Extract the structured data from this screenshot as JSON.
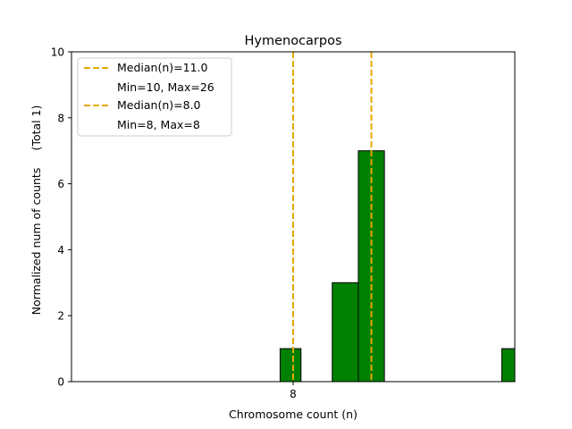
{
  "chart_data": {
    "type": "bar",
    "title": "Hymenocarpos",
    "xlabel": "Chromosome count (n)",
    "ylabel": "Normalized num of counts",
    "ylabel_secondary": "(Total 1)",
    "xlim": [
      -0.5,
      16.5
    ],
    "ylim": [
      0,
      10
    ],
    "x_ticks": [
      {
        "value": 8,
        "label": "8"
      }
    ],
    "y_ticks": [
      0,
      2,
      4,
      6,
      8,
      10
    ],
    "bars": [
      {
        "x0": 7.5,
        "x1": 8.3,
        "value": 1
      },
      {
        "x0": 9.5,
        "x1": 10.5,
        "value": 3
      },
      {
        "x0": 10.5,
        "x1": 11.5,
        "value": 7
      },
      {
        "x0": 16.0,
        "x1": 16.5,
        "value": 1
      }
    ],
    "bar_color": "#008000",
    "bar_edge": "#000000",
    "median_lines": [
      {
        "x": 11.0,
        "color": "#e6a800"
      },
      {
        "x": 8.0,
        "color": "#e6a800"
      }
    ],
    "legend": {
      "placement": "top-left",
      "entries": [
        {
          "label": "Median(n)=11.0",
          "sub": "Min=10, Max=26"
        },
        {
          "label": "Median(n)=8.0",
          "sub": "Min=8, Max=8"
        }
      ]
    },
    "grid": false
  }
}
